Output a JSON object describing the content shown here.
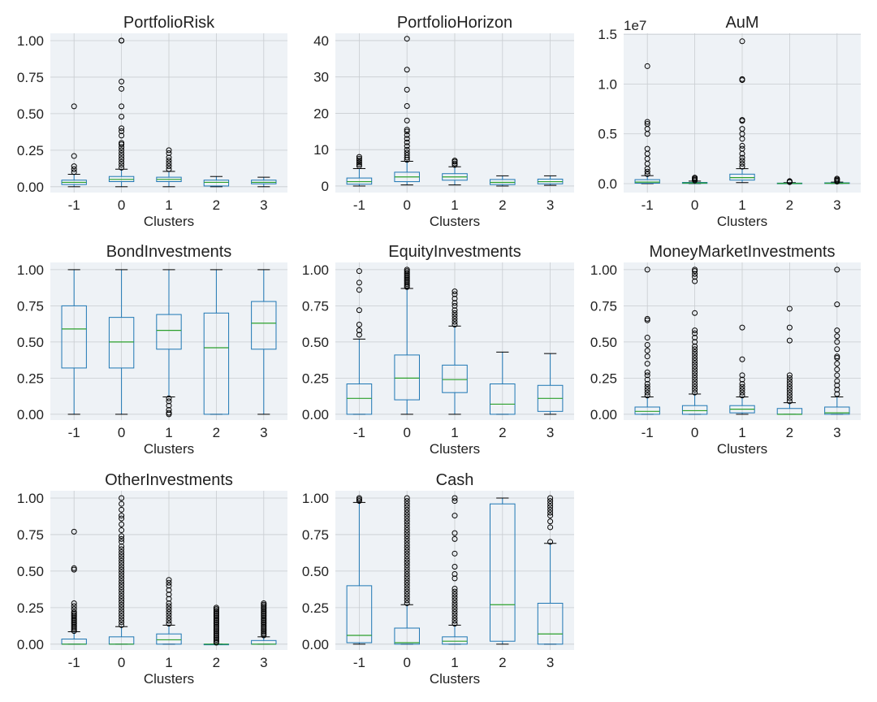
{
  "figure": {
    "xlabel": "Clusters",
    "categories": [
      "-1",
      "0",
      "1",
      "2",
      "3"
    ],
    "colors": {
      "plot_bg": "#eef2f6",
      "grid": "#c8ccd0",
      "box": "#1f77b4",
      "median": "#2ca02c",
      "flier": "#000000",
      "whisker": "#1f77b4"
    }
  },
  "chart_data": [
    {
      "type": "box",
      "title": "PortfolioRisk",
      "xlabel": "Clusters",
      "ylim": [
        -0.04,
        1.05
      ],
      "yticks": [
        0,
        0.25,
        0.5,
        0.75,
        1.0
      ],
      "ytick_labels": [
        "0.00",
        "0.25",
        "0.50",
        "0.75",
        "1.00"
      ],
      "offset_label": "",
      "categories": [
        "-1",
        "0",
        "1",
        "2",
        "3"
      ],
      "boxes": [
        {
          "whislo": 0.0,
          "q1": 0.015,
          "med": 0.03,
          "q3": 0.045,
          "whishi": 0.085,
          "fliers": [
            0.1,
            0.12,
            0.14,
            0.21,
            0.55
          ]
        },
        {
          "whislo": 0.0,
          "q1": 0.035,
          "med": 0.05,
          "q3": 0.07,
          "whishi": 0.12,
          "fliers": [
            0.13,
            0.15,
            0.17,
            0.19,
            0.21,
            0.23,
            0.25,
            0.27,
            0.29,
            0.3,
            0.35,
            0.38,
            0.4,
            0.48,
            0.55,
            0.67,
            0.72,
            1.0,
            1.0
          ]
        },
        {
          "whislo": 0.0,
          "q1": 0.035,
          "med": 0.05,
          "q3": 0.065,
          "whishi": 0.105,
          "fliers": [
            0.12,
            0.14,
            0.16,
            0.18,
            0.2,
            0.23,
            0.25
          ]
        },
        {
          "whislo": 0.0,
          "q1": 0.005,
          "med": 0.03,
          "q3": 0.045,
          "whishi": 0.07,
          "fliers": []
        },
        {
          "whislo": 0.0,
          "q1": 0.02,
          "med": 0.03,
          "q3": 0.045,
          "whishi": 0.065,
          "fliers": []
        }
      ]
    },
    {
      "type": "box",
      "title": "PortfolioHorizon",
      "xlabel": "Clusters",
      "ylim": [
        -1.8,
        42
      ],
      "yticks": [
        0,
        10,
        20,
        30,
        40
      ],
      "ytick_labels": [
        "0",
        "10",
        "20",
        "30",
        "40"
      ],
      "offset_label": "",
      "categories": [
        "-1",
        "0",
        "1",
        "2",
        "3"
      ],
      "boxes": [
        {
          "whislo": 0.0,
          "q1": 0.5,
          "med": 1.2,
          "q3": 2.2,
          "whishi": 4.8,
          "fliers": [
            5.5,
            6.0,
            6.5,
            7.0,
            7.5,
            8.0
          ]
        },
        {
          "whislo": 0.3,
          "q1": 1.2,
          "med": 2.5,
          "q3": 3.8,
          "whishi": 6.8,
          "fliers": [
            7.2,
            7.8,
            8.5,
            9.2,
            10.0,
            11.0,
            12.0,
            13.0,
            14.0,
            15.0,
            15.5,
            18.0,
            22.0,
            26.5,
            32.0,
            40.5
          ]
        },
        {
          "whislo": 0.3,
          "q1": 1.6,
          "med": 2.5,
          "q3": 3.4,
          "whishi": 5.3,
          "fliers": [
            5.8,
            6.2,
            6.7,
            7.0
          ]
        },
        {
          "whislo": 0.0,
          "q1": 0.4,
          "med": 1.0,
          "q3": 1.8,
          "whishi": 2.8,
          "fliers": []
        },
        {
          "whislo": 0.2,
          "q1": 0.6,
          "med": 1.2,
          "q3": 1.9,
          "whishi": 2.8,
          "fliers": []
        }
      ]
    },
    {
      "type": "box",
      "title": "AuM",
      "xlabel": "Clusters",
      "ylim": [
        -900000,
        15100000
      ],
      "yticks": [
        0,
        5000000,
        10000000,
        15000000
      ],
      "ytick_labels": [
        "0.0",
        "0.5",
        "1.0",
        "1.5"
      ],
      "offset_label": "1e7",
      "categories": [
        "-1",
        "0",
        "1",
        "2",
        "3"
      ],
      "boxes": [
        {
          "whislo": 0,
          "q1": 40000,
          "med": 150000,
          "q3": 400000,
          "whishi": 800000,
          "fliers": [
            950000,
            1200000,
            1500000,
            2000000,
            2500000,
            3000000,
            3500000,
            5000000,
            5500000,
            6000000,
            6200000,
            11800000
          ]
        },
        {
          "whislo": 0,
          "q1": 20000,
          "med": 60000,
          "q3": 120000,
          "whishi": 250000,
          "fliers": [
            300000,
            400000,
            500000,
            600000
          ]
        },
        {
          "whislo": 100000,
          "q1": 350000,
          "med": 600000,
          "q3": 950000,
          "whishi": 1500000,
          "fliers": [
            1700000,
            2000000,
            2300000,
            2600000,
            3000000,
            3500000,
            3800000,
            4500000,
            5000000,
            5500000,
            6300000,
            6400000,
            10400000,
            10500000,
            14300000
          ]
        },
        {
          "whislo": 0,
          "q1": 5000,
          "med": 20000,
          "q3": 50000,
          "whishi": 100000,
          "fliers": [
            150000,
            200000,
            250000
          ]
        },
        {
          "whislo": 0,
          "q1": 10000,
          "med": 40000,
          "q3": 80000,
          "whishi": 150000,
          "fliers": [
            200000,
            300000,
            400000,
            500000
          ]
        }
      ]
    },
    {
      "type": "box",
      "title": "BondInvestments",
      "xlabel": "Clusters",
      "ylim": [
        -0.04,
        1.05
      ],
      "yticks": [
        0,
        0.25,
        0.5,
        0.75,
        1.0
      ],
      "ytick_labels": [
        "0.00",
        "0.25",
        "0.50",
        "0.75",
        "1.00"
      ],
      "offset_label": "",
      "categories": [
        "-1",
        "0",
        "1",
        "2",
        "3"
      ],
      "boxes": [
        {
          "whislo": 0.0,
          "q1": 0.32,
          "med": 0.59,
          "q3": 0.75,
          "whishi": 1.0,
          "fliers": []
        },
        {
          "whislo": 0.0,
          "q1": 0.32,
          "med": 0.5,
          "q3": 0.67,
          "whishi": 1.0,
          "fliers": []
        },
        {
          "whislo": 0.12,
          "q1": 0.45,
          "med": 0.58,
          "q3": 0.69,
          "whishi": 1.0,
          "fliers": [
            0.0,
            0.01,
            0.03,
            0.06,
            0.09,
            0.11
          ]
        },
        {
          "whislo": 0.0,
          "q1": 0.0,
          "med": 0.46,
          "q3": 0.7,
          "whishi": 1.0,
          "fliers": []
        },
        {
          "whislo": 0.0,
          "q1": 0.45,
          "med": 0.63,
          "q3": 0.78,
          "whishi": 1.0,
          "fliers": []
        }
      ]
    },
    {
      "type": "box",
      "title": "EquityInvestments",
      "xlabel": "Clusters",
      "ylim": [
        -0.04,
        1.05
      ],
      "yticks": [
        0,
        0.25,
        0.5,
        0.75,
        1.0
      ],
      "ytick_labels": [
        "0.00",
        "0.25",
        "0.50",
        "0.75",
        "1.00"
      ],
      "offset_label": "",
      "categories": [
        "-1",
        "0",
        "1",
        "2",
        "3"
      ],
      "boxes": [
        {
          "whislo": 0.0,
          "q1": 0.0,
          "med": 0.11,
          "q3": 0.21,
          "whishi": 0.52,
          "fliers": [
            0.55,
            0.58,
            0.62,
            0.72,
            0.86,
            0.91,
            0.99
          ]
        },
        {
          "whislo": 0.0,
          "q1": 0.1,
          "med": 0.25,
          "q3": 0.41,
          "whishi": 0.87,
          "fliers": [
            0.88,
            0.89,
            0.9,
            0.91,
            0.92,
            0.93,
            0.94,
            0.95,
            0.96,
            0.97,
            0.98,
            0.99,
            1.0
          ]
        },
        {
          "whislo": 0.0,
          "q1": 0.15,
          "med": 0.24,
          "q3": 0.34,
          "whishi": 0.61,
          "fliers": [
            0.62,
            0.64,
            0.66,
            0.68,
            0.7,
            0.72,
            0.75,
            0.77,
            0.8,
            0.83,
            0.85
          ]
        },
        {
          "whislo": 0.0,
          "q1": 0.0,
          "med": 0.07,
          "q3": 0.21,
          "whishi": 0.43,
          "fliers": []
        },
        {
          "whislo": 0.0,
          "q1": 0.02,
          "med": 0.11,
          "q3": 0.2,
          "whishi": 0.42,
          "fliers": []
        }
      ]
    },
    {
      "type": "box",
      "title": "MoneyMarketInvestments",
      "xlabel": "Clusters",
      "ylim": [
        -0.04,
        1.05
      ],
      "yticks": [
        0,
        0.25,
        0.5,
        0.75,
        1.0
      ],
      "ytick_labels": [
        "0.00",
        "0.25",
        "0.50",
        "0.75",
        "1.00"
      ],
      "offset_label": "",
      "categories": [
        "-1",
        "0",
        "1",
        "2",
        "3"
      ],
      "boxes": [
        {
          "whislo": 0.0,
          "q1": 0.0,
          "med": 0.02,
          "q3": 0.05,
          "whishi": 0.12,
          "fliers": [
            0.13,
            0.15,
            0.17,
            0.19,
            0.21,
            0.24,
            0.27,
            0.29,
            0.35,
            0.4,
            0.44,
            0.48,
            0.53,
            0.65,
            0.66,
            1.0
          ]
        },
        {
          "whislo": 0.0,
          "q1": 0.0,
          "med": 0.025,
          "q3": 0.06,
          "whishi": 0.14,
          "fliers": [
            0.15,
            0.17,
            0.19,
            0.21,
            0.23,
            0.25,
            0.27,
            0.29,
            0.31,
            0.33,
            0.35,
            0.37,
            0.39,
            0.41,
            0.43,
            0.45,
            0.47,
            0.5,
            0.53,
            0.56,
            0.58,
            0.7,
            0.92,
            0.95,
            0.97,
            0.99,
            1.0
          ]
        },
        {
          "whislo": 0.0,
          "q1": 0.01,
          "med": 0.035,
          "q3": 0.06,
          "whishi": 0.12,
          "fliers": [
            0.13,
            0.15,
            0.17,
            0.19,
            0.21,
            0.24,
            0.27,
            0.38,
            0.6
          ]
        },
        {
          "whislo": 0.0,
          "q1": 0.0,
          "med": 0.0,
          "q3": 0.04,
          "whishi": 0.08,
          "fliers": [
            0.09,
            0.11,
            0.13,
            0.15,
            0.17,
            0.19,
            0.21,
            0.23,
            0.25,
            0.27,
            0.51,
            0.6,
            0.73
          ]
        },
        {
          "whislo": 0.0,
          "q1": 0.0,
          "med": 0.01,
          "q3": 0.05,
          "whishi": 0.12,
          "fliers": [
            0.14,
            0.17,
            0.2,
            0.23,
            0.27,
            0.31,
            0.35,
            0.39,
            0.4,
            0.45,
            0.5,
            0.54,
            0.58,
            0.76,
            1.0
          ]
        }
      ]
    },
    {
      "type": "box",
      "title": "OtherInvestments",
      "xlabel": "Clusters",
      "ylim": [
        -0.04,
        1.05
      ],
      "yticks": [
        0,
        0.25,
        0.5,
        0.75,
        1.0
      ],
      "ytick_labels": [
        "0.00",
        "0.25",
        "0.50",
        "0.75",
        "1.00"
      ],
      "offset_label": "",
      "categories": [
        "-1",
        "0",
        "1",
        "2",
        "3"
      ],
      "boxes": [
        {
          "whislo": 0.0,
          "q1": 0.0,
          "med": 0.0,
          "q3": 0.035,
          "whishi": 0.085,
          "fliers": [
            0.09,
            0.1,
            0.11,
            0.12,
            0.13,
            0.14,
            0.15,
            0.16,
            0.17,
            0.18,
            0.19,
            0.2,
            0.21,
            0.22,
            0.24,
            0.26,
            0.28,
            0.51,
            0.52,
            0.77
          ]
        },
        {
          "whislo": 0.0,
          "q1": 0.0,
          "med": 0.0,
          "q3": 0.05,
          "whishi": 0.12,
          "fliers": [
            0.13,
            0.15,
            0.17,
            0.19,
            0.21,
            0.23,
            0.25,
            0.27,
            0.29,
            0.31,
            0.33,
            0.35,
            0.37,
            0.39,
            0.41,
            0.43,
            0.45,
            0.47,
            0.49,
            0.51,
            0.53,
            0.55,
            0.57,
            0.59,
            0.61,
            0.63,
            0.65,
            0.67,
            0.7,
            0.72,
            0.74,
            0.78,
            0.82,
            0.86,
            0.88,
            0.92,
            0.96,
            1.0
          ]
        },
        {
          "whislo": 0.0,
          "q1": 0.0,
          "med": 0.03,
          "q3": 0.07,
          "whishi": 0.13,
          "fliers": [
            0.14,
            0.16,
            0.18,
            0.2,
            0.22,
            0.24,
            0.26,
            0.28,
            0.31,
            0.34,
            0.37,
            0.4,
            0.42,
            0.44
          ]
        },
        {
          "whislo": 0.0,
          "q1": 0.0,
          "med": 0.0,
          "q3": 0.0,
          "whishi": 0.0,
          "fliers": [
            0.01,
            0.02,
            0.03,
            0.04,
            0.05,
            0.06,
            0.07,
            0.08,
            0.09,
            0.1,
            0.11,
            0.12,
            0.13,
            0.14,
            0.15,
            0.16,
            0.17,
            0.18,
            0.19,
            0.2,
            0.21,
            0.22,
            0.23,
            0.24,
            0.25
          ]
        },
        {
          "whislo": 0.0,
          "q1": 0.0,
          "med": 0.0,
          "q3": 0.025,
          "whishi": 0.05,
          "fliers": [
            0.06,
            0.07,
            0.08,
            0.09,
            0.1,
            0.11,
            0.12,
            0.13,
            0.14,
            0.15,
            0.16,
            0.17,
            0.18,
            0.19,
            0.2,
            0.21,
            0.22,
            0.23,
            0.24,
            0.25,
            0.26,
            0.27,
            0.28
          ]
        }
      ]
    },
    {
      "type": "box",
      "title": "Cash",
      "xlabel": "Clusters",
      "ylim": [
        -0.04,
        1.05
      ],
      "yticks": [
        0,
        0.25,
        0.5,
        0.75,
        1.0
      ],
      "ytick_labels": [
        "0.00",
        "0.25",
        "0.50",
        "0.75",
        "1.00"
      ],
      "offset_label": "",
      "categories": [
        "-1",
        "0",
        "1",
        "2",
        "3"
      ],
      "boxes": [
        {
          "whislo": 0.0,
          "q1": 0.01,
          "med": 0.06,
          "q3": 0.4,
          "whishi": 0.97,
          "fliers": [
            0.98,
            0.99,
            1.0
          ]
        },
        {
          "whislo": 0.0,
          "q1": 0.0,
          "med": 0.01,
          "q3": 0.11,
          "whishi": 0.27,
          "fliers": [
            0.28,
            0.3,
            0.32,
            0.34,
            0.36,
            0.38,
            0.4,
            0.42,
            0.44,
            0.46,
            0.48,
            0.5,
            0.52,
            0.54,
            0.56,
            0.58,
            0.6,
            0.62,
            0.64,
            0.66,
            0.68,
            0.7,
            0.72,
            0.74,
            0.76,
            0.78,
            0.8,
            0.82,
            0.84,
            0.86,
            0.88,
            0.9,
            0.92,
            0.94,
            0.96,
            0.98,
            1.0
          ]
        },
        {
          "whislo": 0.0,
          "q1": 0.0,
          "med": 0.02,
          "q3": 0.05,
          "whishi": 0.13,
          "fliers": [
            0.14,
            0.16,
            0.18,
            0.2,
            0.22,
            0.24,
            0.26,
            0.28,
            0.3,
            0.32,
            0.34,
            0.36,
            0.38,
            0.45,
            0.48,
            0.53,
            0.62,
            0.72,
            0.76,
            0.88,
            0.98,
            1.0
          ]
        },
        {
          "whislo": 0.0,
          "q1": 0.02,
          "med": 0.27,
          "q3": 0.96,
          "whishi": 1.0,
          "fliers": []
        },
        {
          "whislo": 0.0,
          "q1": 0.0,
          "med": 0.07,
          "q3": 0.28,
          "whishi": 0.69,
          "fliers": [
            0.7,
            0.8,
            0.84,
            0.88,
            0.9,
            0.92,
            0.94,
            0.96,
            0.98,
            1.0
          ]
        }
      ]
    }
  ]
}
